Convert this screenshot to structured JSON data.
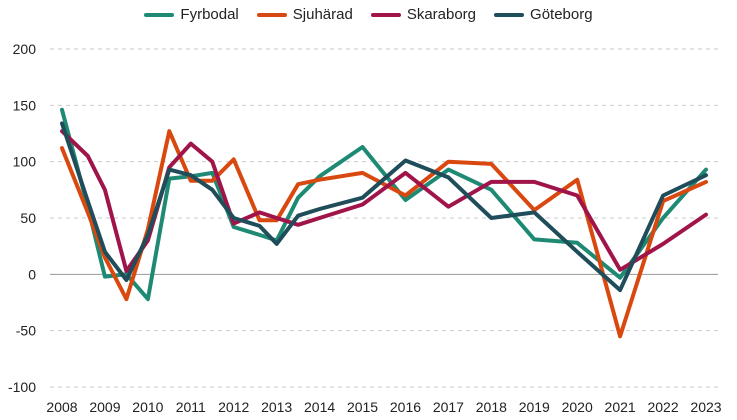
{
  "chart_data": {
    "type": "line",
    "title": "",
    "xlabel": "",
    "ylabel": "",
    "ylim": [
      -100,
      200
    ],
    "yticks": [
      -100,
      -50,
      0,
      50,
      100,
      150,
      200
    ],
    "grid": true,
    "legend_position": "top-center",
    "x": [
      2008,
      2008.6,
      2009,
      2009.5,
      2010,
      2010.5,
      2011,
      2011.5,
      2012,
      2012.6,
      2013,
      2013.5,
      2014,
      2015,
      2016,
      2017,
      2018,
      2019,
      2020,
      2021,
      2022,
      2023
    ],
    "x_tick_labels": [
      "2008",
      "2009",
      "2010",
      "2011",
      "2012",
      "2013",
      "2014",
      "2015",
      "2016",
      "2017",
      "2018",
      "2019",
      "2020",
      "2021",
      "2022",
      "2023"
    ],
    "series": [
      {
        "name": "Fyrbodal",
        "color": "#1e8a73",
        "values": [
          146,
          60,
          -2,
          0,
          -22,
          85,
          87,
          90,
          42,
          35,
          30,
          68,
          87,
          113,
          66,
          93,
          75,
          31,
          28,
          -3,
          50,
          93
        ]
      },
      {
        "name": "Sjuhärad",
        "color": "#d9480f",
        "values": [
          112,
          55,
          15,
          -22,
          40,
          127,
          83,
          83,
          102,
          48,
          48,
          80,
          84,
          90,
          70,
          100,
          98,
          57,
          84,
          -55,
          65,
          82
        ]
      },
      {
        "name": "Skaraborg",
        "color": "#a0144a",
        "values": [
          127,
          105,
          75,
          3,
          30,
          95,
          116,
          100,
          45,
          55,
          50,
          44,
          50,
          62,
          90,
          60,
          82,
          82,
          70,
          4,
          27,
          53
        ]
      },
      {
        "name": "Göteborg",
        "color": "#1f4d5a",
        "values": [
          134,
          65,
          20,
          -5,
          35,
          93,
          88,
          75,
          50,
          43,
          27,
          52,
          58,
          68,
          101,
          86,
          50,
          55,
          20,
          -14,
          70,
          88
        ]
      }
    ]
  }
}
